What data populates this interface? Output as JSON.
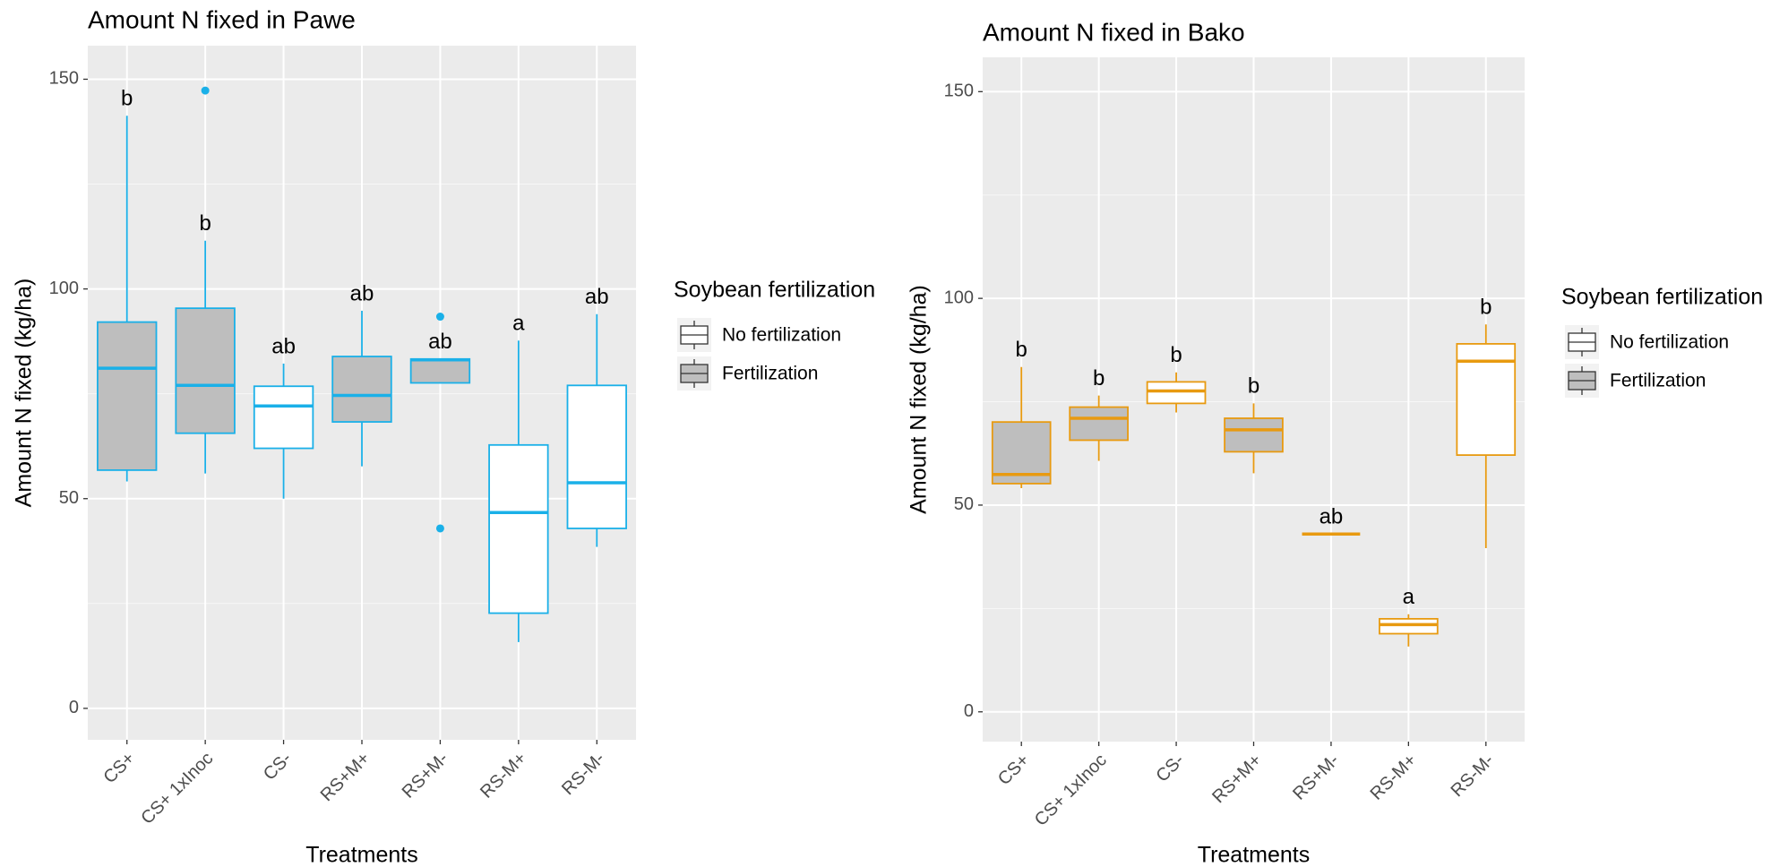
{
  "chart_data": [
    {
      "type": "box",
      "title": "Amount N fixed in Pawe",
      "x_label": "Treatments",
      "y_label": "Amount N fixed (kg/ha)",
      "categories": [
        "CS+",
        "CS+ 1xInoc",
        "CS-",
        "RS+M+",
        "RS+M-",
        "RS-M+",
        "RS-M-"
      ],
      "color": "#1ab0e8",
      "ylim": [
        -7.5,
        158
      ],
      "yticks": [
        0,
        50,
        100,
        150
      ],
      "grid": true,
      "legend_title": "Soybean fertilization",
      "series": [
        {
          "name": "No fertilization",
          "fill": "#ffffff",
          "boxes": [
            null,
            null,
            {
              "min": 50,
              "q1": 62,
              "median": 72.1,
              "q3": 76.8,
              "max": 82.2,
              "outliers": []
            },
            null,
            null,
            {
              "min": 15.8,
              "q1": 22.7,
              "median": 46.7,
              "q3": 62.8,
              "max": 87.7,
              "outliers": []
            },
            {
              "min": 38.5,
              "q1": 42.9,
              "median": 53.8,
              "q3": 77,
              "max": 94,
              "outliers": []
            }
          ]
        },
        {
          "name": "Fertilization",
          "fill": "#bebebe",
          "boxes": [
            {
              "min": 54.1,
              "q1": 56.8,
              "median": 81.1,
              "q3": 92.1,
              "max": 141.3,
              "outliers": []
            },
            {
              "min": 56,
              "q1": 65.6,
              "median": 77,
              "q3": 95.4,
              "max": 111.5,
              "outliers": [
                147.3
              ]
            },
            null,
            {
              "min": 57.7,
              "q1": 68.3,
              "median": 74.6,
              "q3": 83.9,
              "max": 94.8,
              "outliers": []
            },
            {
              "min": 77.6,
              "q1": 77.6,
              "median": 83.1,
              "q3": 83.3,
              "max": 83.3,
              "outliers": [
                93.4,
                42.9
              ]
            },
            null,
            null
          ]
        }
      ],
      "letters": [
        "b",
        "b",
        "ab",
        "ab",
        "ab",
        "a",
        "ab"
      ]
    },
    {
      "type": "box",
      "title": "Amount N fixed in Bako",
      "x_label": "Treatments",
      "y_label": "Amount N fixed (kg/ha)",
      "categories": [
        "CS+",
        "CS+ 1xInoc",
        "CS-",
        "RS+M+",
        "RS+M-",
        "RS-M+",
        "RS-M-"
      ],
      "color": "#e89a10",
      "ylim": [
        -7.2,
        158.3
      ],
      "yticks": [
        0,
        50,
        100,
        150
      ],
      "grid": true,
      "legend_title": "Soybean fertilization",
      "series": [
        {
          "name": "No fertilization",
          "fill": "#ffffff",
          "boxes": [
            null,
            null,
            {
              "min": 72.4,
              "q1": 74.6,
              "median": 77.6,
              "q3": 79.8,
              "max": 82.1,
              "outliers": []
            },
            null,
            null,
            {
              "min": 15.8,
              "q1": 18.9,
              "median": 21.1,
              "q3": 22.5,
              "max": 23.6,
              "outliers": []
            },
            {
              "min": 39.6,
              "q1": 62.1,
              "median": 84.8,
              "q3": 89,
              "max": 93.7,
              "outliers": []
            }
          ]
        },
        {
          "name": "Fertilization",
          "fill": "#bebebe",
          "boxes": [
            {
              "min": 54.1,
              "q1": 55.2,
              "median": 57.4,
              "q3": 70.1,
              "max": 83.4,
              "outliers": []
            },
            {
              "min": 60.7,
              "q1": 65.7,
              "median": 71,
              "q3": 73.7,
              "max": 76.5,
              "outliers": []
            },
            null,
            {
              "min": 57.7,
              "q1": 62.9,
              "median": 68.2,
              "q3": 71,
              "max": 74.6,
              "outliers": []
            },
            {
              "min": 43,
              "q1": 43,
              "median": 43,
              "q3": 43,
              "max": 43,
              "outliers": []
            },
            null,
            null
          ]
        }
      ],
      "letters": [
        "b",
        "b",
        "b",
        "b",
        "ab",
        "a",
        "b"
      ]
    }
  ]
}
